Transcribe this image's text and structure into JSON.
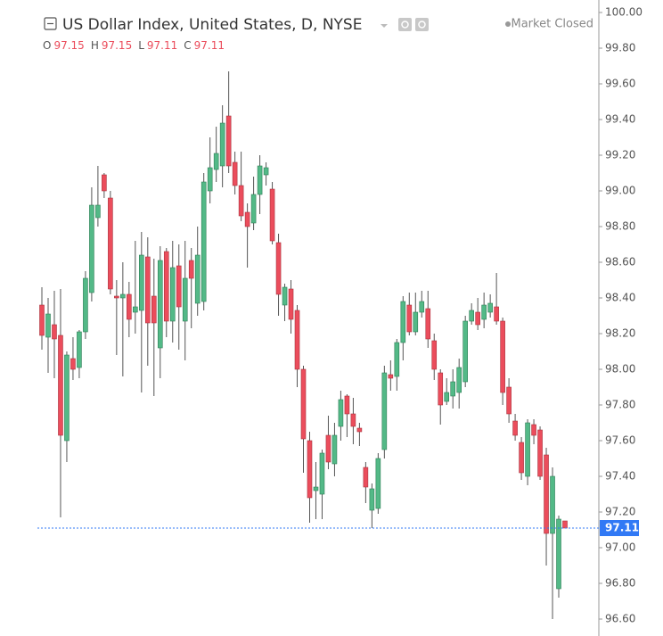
{
  "chart_data": {
    "type": "candlestick",
    "title": "US Dollar Index, United States, D, NYSE",
    "status": "Market Closed",
    "ohlc_labels": [
      "O",
      "H",
      "L",
      "C"
    ],
    "up_color": "#53b987",
    "down_color": "#eb4d5c",
    "open": [
      98.36,
      98.18,
      98.25,
      98.19,
      97.6,
      98.06,
      98.01,
      98.21,
      98.43,
      98.85,
      99.09,
      98.96,
      98.41,
      98.4,
      98.42,
      98.32,
      98.33,
      98.63,
      98.41,
      98.12,
      98.66,
      98.27,
      98.58,
      98.27,
      98.61,
      98.37,
      98.38,
      99.0,
      99.12,
      99.14,
      99.42,
      99.16,
      99.03,
      98.88,
      98.82,
      98.98,
      99.09,
      99.01,
      98.71,
      98.36,
      98.45,
      98.33,
      98.0,
      97.6,
      97.32,
      97.3,
      97.63,
      97.47,
      97.68,
      97.85,
      97.75,
      97.67,
      97.45,
      97.21,
      97.22,
      97.55,
      97.97,
      97.96,
      98.15,
      98.36,
      98.21,
      98.32,
      98.34,
      98.16,
      97.98,
      97.82,
      97.85,
      97.87,
      97.93,
      98.27,
      98.32,
      98.28,
      98.32,
      98.35,
      98.27,
      97.9,
      97.71,
      97.59,
      97.4,
      97.69,
      97.66,
      97.52,
      97.08,
      96.77,
      97.15
    ],
    "high": [
      98.46,
      98.4,
      98.44,
      98.45,
      98.1,
      98.18,
      98.22,
      98.55,
      99.02,
      99.14,
      99.1,
      99.0,
      98.5,
      98.6,
      98.49,
      98.72,
      98.77,
      98.74,
      98.62,
      98.69,
      98.68,
      98.72,
      98.7,
      98.72,
      98.68,
      98.8,
      99.1,
      99.3,
      99.36,
      99.48,
      99.67,
      99.22,
      99.22,
      98.93,
      99.08,
      99.2,
      99.16,
      99.05,
      98.76,
      98.48,
      98.5,
      98.36,
      98.02,
      97.65,
      97.48,
      97.55,
      97.74,
      97.7,
      97.88,
      97.86,
      97.84,
      97.7,
      97.48,
      97.36,
      97.53,
      98.02,
      98.05,
      98.17,
      98.41,
      98.43,
      98.43,
      98.44,
      98.44,
      98.2,
      98.0,
      97.95,
      98.0,
      98.06,
      98.3,
      98.37,
      98.4,
      98.43,
      98.42,
      98.54,
      98.29,
      97.95,
      97.75,
      97.62,
      97.72,
      97.72,
      97.68,
      97.56,
      97.45,
      97.18,
      97.15
    ],
    "low": [
      98.11,
      97.98,
      97.95,
      97.17,
      97.48,
      97.94,
      97.95,
      98.17,
      98.38,
      98.8,
      98.96,
      98.42,
      98.08,
      97.96,
      98.18,
      98.2,
      97.87,
      98.02,
      97.85,
      97.95,
      98.18,
      98.15,
      98.11,
      98.05,
      98.23,
      98.3,
      98.33,
      98.93,
      99.05,
      99.02,
      99.1,
      98.98,
      98.83,
      98.57,
      98.78,
      98.87,
      99.03,
      98.7,
      98.3,
      98.27,
      98.2,
      97.9,
      97.42,
      97.14,
      97.16,
      97.16,
      97.44,
      97.4,
      97.6,
      97.62,
      97.58,
      97.57,
      97.25,
      97.11,
      97.19,
      97.5,
      97.88,
      97.88,
      98.05,
      98.19,
      98.19,
      98.29,
      98.12,
      97.94,
      97.69,
      97.8,
      97.78,
      97.78,
      97.9,
      98.25,
      98.22,
      98.23,
      98.29,
      98.25,
      97.8,
      97.7,
      97.6,
      97.38,
      97.35,
      97.58,
      97.38,
      96.9,
      96.6,
      96.72,
      97.11
    ],
    "close": [
      98.19,
      98.31,
      98.17,
      97.63,
      98.08,
      98.0,
      98.21,
      98.51,
      98.92,
      98.92,
      99.0,
      98.45,
      98.4,
      98.42,
      98.28,
      98.35,
      98.64,
      98.26,
      98.26,
      98.61,
      98.27,
      98.57,
      98.35,
      98.51,
      98.51,
      98.64,
      99.05,
      99.13,
      99.21,
      99.38,
      99.14,
      99.03,
      98.86,
      98.8,
      98.98,
      99.14,
      99.13,
      98.72,
      98.42,
      98.46,
      98.28,
      98.0,
      97.61,
      97.28,
      97.34,
      97.53,
      97.48,
      97.63,
      97.83,
      97.75,
      97.68,
      97.65,
      97.34,
      97.33,
      97.5,
      97.98,
      97.95,
      98.15,
      98.38,
      98.21,
      98.32,
      98.38,
      98.17,
      98.0,
      97.8,
      97.87,
      97.93,
      98.01,
      98.27,
      98.33,
      98.25,
      98.36,
      98.37,
      98.27,
      97.87,
      97.75,
      97.63,
      97.42,
      97.7,
      97.63,
      97.4,
      97.08,
      97.4,
      97.16,
      97.11
    ],
    "ylim": [
      96.505,
      100.07
    ],
    "yticks": [
      {
        "value": 96.6,
        "label": "96.60"
      },
      {
        "value": 96.8,
        "label": "96.80"
      },
      {
        "value": 97.0,
        "label": "97.00"
      },
      {
        "value": 97.2,
        "label": "97.20"
      },
      {
        "value": 97.4,
        "label": "97.40"
      },
      {
        "value": 97.6,
        "label": "97.60"
      },
      {
        "value": 97.8,
        "label": "97.80"
      },
      {
        "value": 98.0,
        "label": "98.00"
      },
      {
        "value": 98.2,
        "label": "98.20"
      },
      {
        "value": 98.4,
        "label": "98.40"
      },
      {
        "value": 98.6,
        "label": "98.60"
      },
      {
        "value": 98.8,
        "label": "98.80"
      },
      {
        "value": 99.0,
        "label": "99.00"
      },
      {
        "value": 99.2,
        "label": "99.20"
      },
      {
        "value": 99.4,
        "label": "99.40"
      },
      {
        "value": 99.6,
        "label": "99.60"
      },
      {
        "value": 99.8,
        "label": "99.80"
      },
      {
        "value": 100.0,
        "label": "100.00"
      }
    ],
    "last_price_color": "#3179f5"
  }
}
